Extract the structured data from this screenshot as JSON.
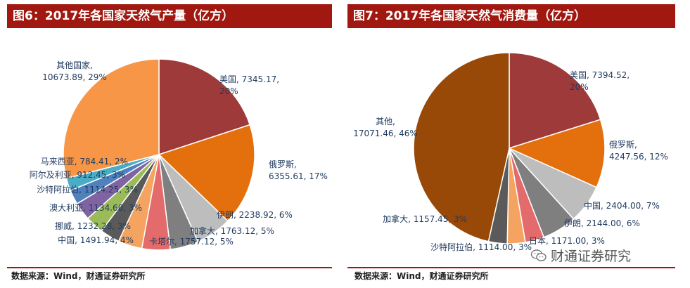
{
  "charts": [
    {
      "title": "图6：2017年各国家天然气产量（亿方）",
      "source": "数据来源：Wind，财通证券研究所"
    },
    {
      "title": "图7：2017年各国家天然气消费量（亿方）",
      "source": "数据来源：Wind，财通证券研究所"
    }
  ],
  "watermark": {
    "text": "财通证券研究",
    "icon": "wechat-icon"
  },
  "chart_data": [
    {
      "type": "pie",
      "title": "图6：2017年各国家天然气产量（亿方）",
      "unit": "亿方",
      "slices": [
        {
          "name": "美国",
          "value": 7345.17,
          "pct": "20%",
          "value_text": "7345.17",
          "color": "#9e3a3a"
        },
        {
          "name": "俄罗斯",
          "value": 6355.61,
          "pct": "17%",
          "value_text": "6355.61",
          "color": "#e3700d"
        },
        {
          "name": "伊朗",
          "value": 2238.92,
          "pct": "6%",
          "value_text": "2238.92",
          "color": "#bdbdbd"
        },
        {
          "name": "加拿大",
          "value": 1763.12,
          "pct": "5%",
          "value_text": "1763.12",
          "color": "#7f7f7f"
        },
        {
          "name": "卡塔尔",
          "value": 1757.12,
          "pct": "5%",
          "value_text": "1757.12",
          "color": "#e36b6b"
        },
        {
          "name": "中国",
          "value": 1491.94,
          "pct": "4%",
          "value_text": "1491.94",
          "color": "#f4a460"
        },
        {
          "name": "挪威",
          "value": 1232.28,
          "pct": "3%",
          "value_text": "1232.28",
          "color": "#5a5a5a"
        },
        {
          "name": "澳大利亚",
          "value": 1134.6,
          "pct": "3%",
          "value_text": "1134.60",
          "color": "#9bbb59"
        },
        {
          "name": "沙特阿拉伯",
          "value": 1114.25,
          "pct": "3%",
          "value_text": "1114.25",
          "color": "#8064a2"
        },
        {
          "name": "阿尔及利亚",
          "value": 912.45,
          "pct": "3%",
          "value_text": "912.45",
          "color": "#4f81bd"
        },
        {
          "name": "马来西亚",
          "value": 784.41,
          "pct": "2%",
          "value_text": "784.41",
          "color": "#4bacc6"
        },
        {
          "name": "其他国家",
          "value": 10673.89,
          "pct": "29%",
          "value_text": "10673.89",
          "color": "#f79646"
        }
      ],
      "labels": [
        {
          "lines": [
            "美国, 7345.17,",
            "20%"
          ]
        },
        {
          "lines": [
            "俄罗斯,",
            "6355.61, 17%"
          ]
        },
        {
          "lines": [
            "伊朗, 2238.92, 6%"
          ]
        },
        {
          "lines": [
            "加拿大, 1763.12, 5%"
          ]
        },
        {
          "lines": [
            "卡塔尔, 1757.12, 5%"
          ]
        },
        {
          "lines": [
            "中国, 1491.94, 4%"
          ]
        },
        {
          "lines": [
            "挪威, 1232.28, 3%"
          ]
        },
        {
          "lines": [
            "澳大利亚, 1134.60, 3%"
          ]
        },
        {
          "lines": [
            "沙特阿拉伯, 1114.25, 3%"
          ]
        },
        {
          "lines": [
            "阿尔及利亚, 912.45, 3%"
          ]
        },
        {
          "lines": [
            "马来西亚, 784.41, 2%"
          ]
        },
        {
          "lines": [
            "其他国家,",
            "10673.89, 29%"
          ]
        }
      ]
    },
    {
      "type": "pie",
      "title": "图7：2017年各国家天然气消费量（亿方）",
      "unit": "亿方",
      "slices": [
        {
          "name": "美国",
          "value": 7394.52,
          "pct": "20%",
          "value_text": "7394.52",
          "color": "#9e3a3a"
        },
        {
          "name": "俄罗斯",
          "value": 4247.56,
          "pct": "12%",
          "value_text": "4247.56",
          "color": "#e3700d"
        },
        {
          "name": "中国",
          "value": 2404.0,
          "pct": "7%",
          "value_text": "2404.00",
          "color": "#bdbdbd"
        },
        {
          "name": "伊朗",
          "value": 2144.0,
          "pct": "6%",
          "value_text": "2144.00",
          "color": "#7f7f7f"
        },
        {
          "name": "日本",
          "value": 1171.0,
          "pct": "3%",
          "value_text": "1171.00",
          "color": "#e36b6b"
        },
        {
          "name": "沙特阿拉伯",
          "value": 1114.0,
          "pct": "3%",
          "value_text": "1114.00",
          "color": "#f4a460"
        },
        {
          "name": "加拿大",
          "value": 1157.45,
          "pct": "3%",
          "value_text": "1157.45",
          "color": "#5a5a5a"
        },
        {
          "name": "其他",
          "value": 17071.46,
          "pct": "46%",
          "value_text": "17071.46",
          "color": "#984807"
        }
      ],
      "labels": [
        {
          "lines": [
            "美国, 7394.52,",
            "20%"
          ]
        },
        {
          "lines": [
            "俄罗斯,",
            "4247.56, 12%"
          ]
        },
        {
          "lines": [
            "中国, 2404.00, 7%"
          ]
        },
        {
          "lines": [
            "伊朗, 2144.00, 6%"
          ]
        },
        {
          "lines": [
            "日本, 1171.00, 3%"
          ]
        },
        {
          "lines": [
            "沙特阿拉伯, 1114.00, 3%"
          ]
        },
        {
          "lines": [
            "加拿大, 1157.45, 3%"
          ]
        },
        {
          "lines": [
            "其他,",
            "17071.46, 46%"
          ]
        }
      ]
    }
  ]
}
